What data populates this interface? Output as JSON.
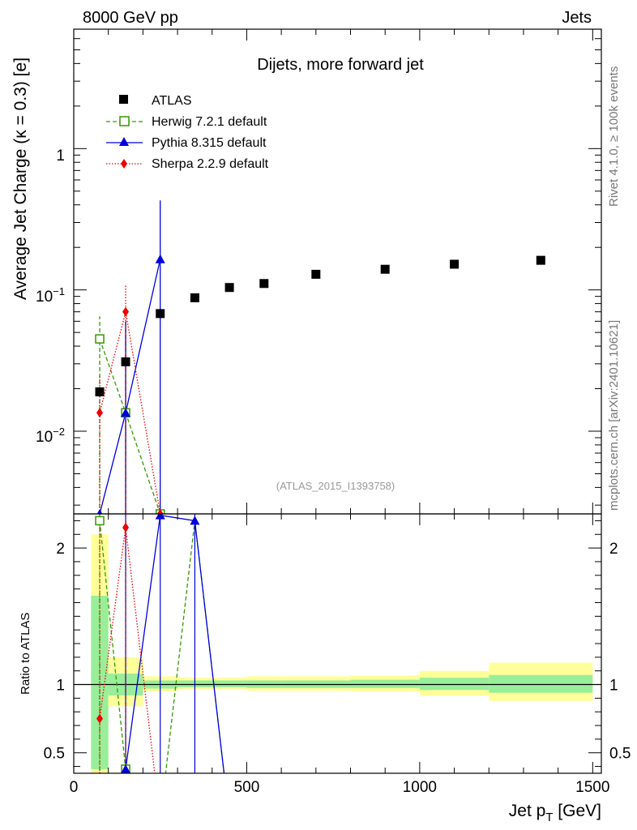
{
  "header": {
    "left": "8000 GeV pp",
    "right": "Jets"
  },
  "side_texts": {
    "rivet": "Rivet 4.1.0, ≥ 100k events",
    "mcplots": "mcplots.cern.ch [arXiv:2401.10621]"
  },
  "colors": {
    "atlas": "#000000",
    "herwig": "#339900",
    "pythia": "#0000dd",
    "sherpa": "#ee0000",
    "band_inner": "#99ee99",
    "band_outer": "#ffff99"
  },
  "chart_data": [
    {
      "type": "scatter",
      "panel": "main",
      "title": "Dijets, more forward jet",
      "analysis_tag": "(ATLAS_2015_I1393758)",
      "xlabel": "Jet p_T [GeV]",
      "ylabel": "Average Jet Charge (κ = 0.3) [e]",
      "yscale": "log",
      "xlim": [
        0,
        1525
      ],
      "ylim": [
        0.0026,
        7.0
      ],
      "y_tick_labels": [
        "10^{-2}",
        "10^{-1}",
        "1"
      ],
      "legend": [
        "ATLAS",
        "Herwig 7.2.1 default",
        "Pythia 8.315 default",
        "Sherpa 2.2.9 default"
      ],
      "series": [
        {
          "name": "ATLAS",
          "marker": "square",
          "x": [
            75,
            150,
            250,
            350,
            450,
            550,
            700,
            900,
            1100,
            1350
          ],
          "y": [
            0.019,
            0.031,
            0.068,
            0.088,
            0.104,
            0.111,
            0.129,
            0.14,
            0.152,
            0.162
          ]
        },
        {
          "name": "Herwig 7.2.1 default",
          "marker": "open-square",
          "style": "dashed",
          "x": [
            75,
            150,
            250
          ],
          "y": [
            0.045,
            0.0135,
            0.0026
          ],
          "yerr_up": [
            0.065,
            0.06,
            0.0026
          ],
          "yerr_down": [
            0.0026,
            0.0026,
            0.0026
          ]
        },
        {
          "name": "Pythia 8.315 default",
          "marker": "triangle",
          "style": "solid",
          "x": [
            75,
            150,
            250
          ],
          "y": [
            0.0026,
            0.0135,
            0.165
          ],
          "yerr_up": [
            0.0026,
            0.06,
            0.43
          ],
          "yerr_down": [
            0.0026,
            0.0026,
            0.0026
          ]
        },
        {
          "name": "Sherpa 2.2.9 default",
          "marker": "diamond",
          "style": "dotted",
          "x": [
            75,
            150,
            250
          ],
          "y": [
            0.0135,
            0.07,
            0.0026
          ],
          "yerr_up": [
            0.025,
            0.11,
            0.0026
          ],
          "yerr_down": [
            0.0026,
            0.0026,
            0.0026
          ]
        }
      ]
    },
    {
      "type": "line",
      "panel": "ratio",
      "ylabel": "Ratio to ATLAS",
      "xlabel": "Jet p_T [GeV]",
      "xlim": [
        0,
        1525
      ],
      "ylim": [
        0.35,
        2.25
      ],
      "y_ticks": [
        0.5,
        1,
        2
      ],
      "y_tick_labels": [
        "0.5",
        "1",
        "2"
      ],
      "x_ticks": [
        0,
        500,
        1000,
        1500
      ],
      "x_tick_labels": [
        "0",
        "500",
        "1000",
        "1500"
      ],
      "bands": [
        {
          "x0": 50,
          "x1": 100,
          "inner": [
            0.38,
            1.65
          ],
          "outer": [
            0.35,
            2.1
          ]
        },
        {
          "x0": 100,
          "x1": 200,
          "inner": [
            0.92,
            1.08
          ],
          "outer": [
            0.84,
            1.2
          ]
        },
        {
          "x0": 200,
          "x1": 300,
          "inner": [
            0.97,
            1.03
          ],
          "outer": [
            0.95,
            1.06
          ]
        },
        {
          "x0": 300,
          "x1": 400,
          "inner": [
            0.98,
            1.03
          ],
          "outer": [
            0.965,
            1.05
          ]
        },
        {
          "x0": 400,
          "x1": 500,
          "inner": [
            0.98,
            1.03
          ],
          "outer": [
            0.965,
            1.05
          ]
        },
        {
          "x0": 500,
          "x1": 600,
          "inner": [
            0.975,
            1.03
          ],
          "outer": [
            0.955,
            1.06
          ]
        },
        {
          "x0": 600,
          "x1": 800,
          "inner": [
            0.975,
            1.03
          ],
          "outer": [
            0.955,
            1.06
          ]
        },
        {
          "x0": 800,
          "x1": 1000,
          "inner": [
            0.975,
            1.035
          ],
          "outer": [
            0.95,
            1.065
          ]
        },
        {
          "x0": 1000,
          "x1": 1200,
          "inner": [
            0.96,
            1.05
          ],
          "outer": [
            0.92,
            1.1
          ]
        },
        {
          "x0": 1200,
          "x1": 1500,
          "inner": [
            0.94,
            1.07
          ],
          "outer": [
            0.88,
            1.16
          ]
        }
      ],
      "series": [
        {
          "name": "Herwig 7.2.1 default",
          "x": [
            75,
            150,
            250,
            350,
            450
          ],
          "y": [
            2.2,
            0.38,
            0.01,
            2.2,
            0.01
          ],
          "markers_x": [
            75,
            150
          ],
          "markers_y": [
            2.2,
            0.38
          ]
        },
        {
          "name": "Pythia 8.315 default",
          "x": [
            75,
            150,
            250,
            350,
            450
          ],
          "y": [
            0.01,
            0.38,
            2.24,
            2.2,
            0.01
          ],
          "markers_x": [
            150,
            250,
            350
          ],
          "markers_y": [
            0.38,
            2.24,
            2.2
          ],
          "vlines_x": [
            150,
            250,
            350
          ]
        },
        {
          "name": "Sherpa 2.2.9 default",
          "x": [
            75,
            150,
            250
          ],
          "y": [
            0.75,
            2.15,
            0.01
          ],
          "markers_x": [
            75,
            150
          ],
          "markers_y": [
            0.75,
            2.15
          ]
        }
      ]
    }
  ]
}
